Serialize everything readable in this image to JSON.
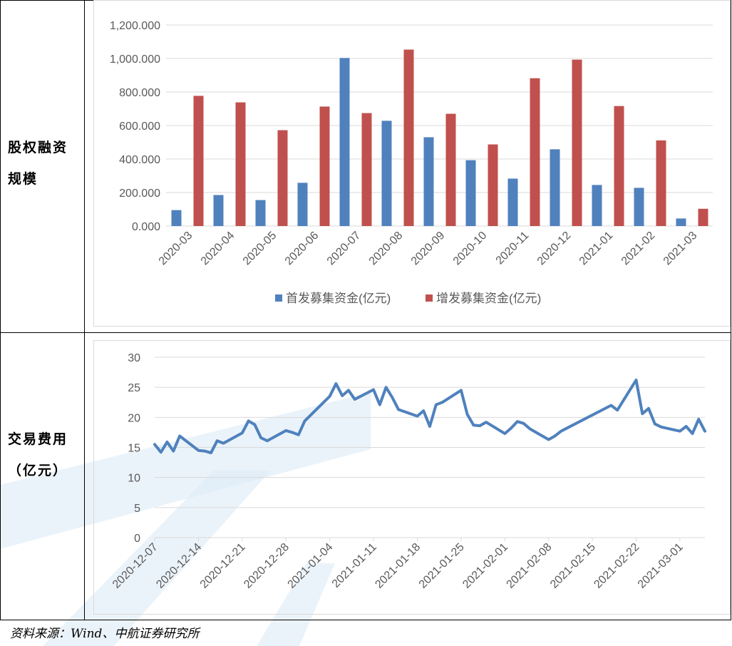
{
  "row1_label_line1": "股权融资",
  "row1_label_line2": "规模",
  "row2_label_line1": "交易费用",
  "row2_label_line2": "（亿元）",
  "source": "资料来源：Wind、中航证券研究所",
  "colors": {
    "ipo": "#4f81bd",
    "spo": "#c0504d",
    "line": "#4f81bd",
    "grid": "#d9d9d9"
  },
  "chart_data": [
    {
      "type": "bar",
      "categories": [
        "2020-03",
        "2020-04",
        "2020-05",
        "2020-06",
        "2020-07",
        "2020-08",
        "2020-09",
        "2020-10",
        "2020-11",
        "2020-12",
        "2021-01",
        "2021-02",
        "2021-03"
      ],
      "series": [
        {
          "name": "首发募集资金(亿元)",
          "values": [
            95,
            185,
            155,
            258,
            1003,
            628,
            530,
            393,
            283,
            458,
            245,
            228,
            45
          ]
        },
        {
          "name": "增发募集资金(亿元)",
          "values": [
            777,
            738,
            572,
            713,
            674,
            1053,
            670,
            487,
            882,
            993,
            716,
            511,
            103
          ]
        }
      ],
      "yticks": [
        "0.000",
        "200.000",
        "400.000",
        "600.000",
        "800.000",
        "1,000.000",
        "1,200.000"
      ],
      "ylim": [
        0,
        1200
      ],
      "grid": true,
      "legend": "bottom"
    },
    {
      "type": "line",
      "x_ticks": [
        "2020-12-07",
        "2020-12-14",
        "2020-12-21",
        "2020-12-28",
        "2021-01-04",
        "2021-01-11",
        "2021-01-18",
        "2021-01-25",
        "2021-02-01",
        "2021-02-08",
        "2021-02-15",
        "2021-02-22",
        "2021-03-01"
      ],
      "series": [
        {
          "x": [
            "2020-12-07",
            "2020-12-08",
            "2020-12-09",
            "2020-12-10",
            "2020-12-11",
            "2020-12-14",
            "2020-12-15",
            "2020-12-16",
            "2020-12-17",
            "2020-12-18",
            "2020-12-21",
            "2020-12-22",
            "2020-12-23",
            "2020-12-24",
            "2020-12-25",
            "2020-12-28",
            "2020-12-29",
            "2020-12-30",
            "2020-12-31",
            "2021-01-04",
            "2021-01-05",
            "2021-01-06",
            "2021-01-07",
            "2021-01-08",
            "2021-01-11",
            "2021-01-12",
            "2021-01-13",
            "2021-01-14",
            "2021-01-15",
            "2021-01-18",
            "2021-01-19",
            "2021-01-20",
            "2021-01-21",
            "2021-01-22",
            "2021-01-25",
            "2021-01-26",
            "2021-01-27",
            "2021-01-28",
            "2021-01-29",
            "2021-02-01",
            "2021-02-02",
            "2021-02-03",
            "2021-02-04",
            "2021-02-05",
            "2021-02-08",
            "2021-02-09",
            "2021-02-10",
            "2021-02-18",
            "2021-02-19",
            "2021-02-22",
            "2021-02-23",
            "2021-02-24",
            "2021-02-25",
            "2021-02-26",
            "2021-03-01",
            "2021-03-02",
            "2021-03-03",
            "2021-03-04",
            "2021-03-05"
          ],
          "values": [
            15.5,
            14.2,
            15.9,
            14.4,
            16.9,
            14.5,
            14.4,
            14.1,
            16.1,
            15.7,
            17.4,
            19.4,
            18.8,
            16.6,
            16.1,
            17.8,
            17.5,
            17.1,
            19.4,
            23.5,
            25.6,
            23.6,
            24.5,
            23.0,
            24.6,
            22.1,
            25.0,
            23.3,
            21.3,
            20.2,
            21.1,
            18.5,
            22.1,
            22.5,
            24.5,
            20.5,
            18.7,
            18.6,
            19.2,
            17.3,
            18.2,
            19.3,
            19.0,
            18.1,
            16.3,
            16.9,
            17.7,
            22.0,
            21.2,
            26.2,
            20.6,
            21.5,
            18.9,
            18.4,
            17.7,
            18.5,
            17.3,
            19.7,
            17.7
          ]
        }
      ],
      "yticks": [
        "0",
        "5",
        "10",
        "15",
        "20",
        "25",
        "30"
      ],
      "ylim": [
        0,
        30
      ],
      "grid": true
    }
  ]
}
